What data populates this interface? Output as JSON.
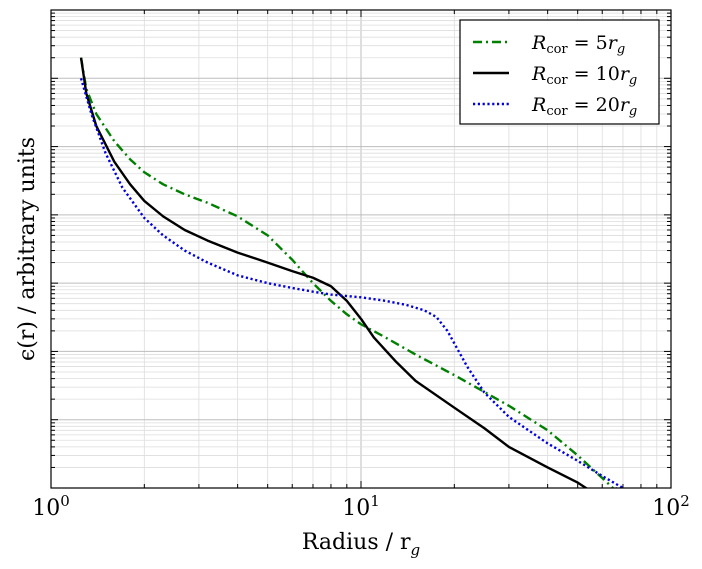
{
  "chart_data": {
    "type": "line",
    "title": "",
    "xlabel": "Radius / r",
    "xlabel_sub": "g",
    "ylabel": "ϵ(r) / arbitrary units",
    "xscale": "log",
    "yscale": "log",
    "xlim": [
      1,
      100
    ],
    "ylim": [
      0.0001,
      1000
    ],
    "grid": true,
    "legend_position": "top-right",
    "x_tick_labels": [
      {
        "value": 1,
        "base": "10",
        "exp": "0"
      },
      {
        "value": 10,
        "base": "10",
        "exp": "1"
      },
      {
        "value": 100,
        "base": "10",
        "exp": "2"
      }
    ],
    "series": [
      {
        "name": "R_cor = 5r_g",
        "legend": {
          "sym": "R",
          "sub": "cor",
          "rest": " = 5",
          "var": "r",
          "var_sub": "g"
        },
        "color": "#008000",
        "dash": "dashdot",
        "x": [
          1.25,
          1.3,
          1.4,
          1.6,
          1.8,
          2.0,
          2.3,
          2.7,
          3.2,
          4.0,
          5.0,
          6.0,
          7.0,
          8.0,
          9.0,
          10.0,
          12.0,
          15.0,
          20.0,
          30.0,
          40.0,
          50.0,
          60.0,
          65.0
        ],
        "y": [
          200,
          70,
          30,
          12,
          6.5,
          4.2,
          2.8,
          2.0,
          1.5,
          0.95,
          0.5,
          0.22,
          0.1,
          0.055,
          0.035,
          0.025,
          0.016,
          0.009,
          0.0045,
          0.0016,
          0.0007,
          0.0003,
          0.00014,
          0.0001
        ]
      },
      {
        "name": "R_cor = 10r_g",
        "legend": {
          "sym": "R",
          "sub": "cor",
          "rest": " = 10",
          "var": "r",
          "var_sub": "g"
        },
        "color": "#000000",
        "dash": "solid",
        "x": [
          1.25,
          1.3,
          1.4,
          1.6,
          1.8,
          2.0,
          2.3,
          2.7,
          3.2,
          4.0,
          5.0,
          6.0,
          7.0,
          8.0,
          9.0,
          10.0,
          11.0,
          13.0,
          15.0,
          20.0,
          25.0,
          30.0,
          40.0,
          50.0,
          60.0,
          67.0
        ],
        "y": [
          200,
          60,
          20,
          6.0,
          2.8,
          1.6,
          0.95,
          0.6,
          0.42,
          0.28,
          0.2,
          0.15,
          0.12,
          0.09,
          0.055,
          0.03,
          0.016,
          0.007,
          0.0037,
          0.0015,
          0.00075,
          0.0004,
          0.0002,
          0.00012,
          7e-05,
          0.0001
        ]
      },
      {
        "name": "R_cor = 20r_g",
        "legend": {
          "sym": "R",
          "sub": "cor",
          "rest": " = 20",
          "var": "r",
          "var_sub": "g"
        },
        "color": "#0000dd",
        "dash": "dotted",
        "x": [
          1.25,
          1.35,
          1.5,
          1.7,
          2.0,
          2.3,
          2.7,
          3.2,
          4.0,
          5.0,
          6.0,
          7.0,
          8.0,
          10.0,
          12.0,
          14.0,
          16.0,
          17.5,
          19.0,
          22.0,
          25.0,
          30.0,
          40.0,
          50.0,
          60.0,
          70.0
        ],
        "y": [
          100,
          30,
          8.0,
          2.5,
          0.9,
          0.5,
          0.3,
          0.2,
          0.13,
          0.1,
          0.085,
          0.075,
          0.068,
          0.062,
          0.055,
          0.048,
          0.04,
          0.032,
          0.02,
          0.006,
          0.0025,
          0.0011,
          0.00045,
          0.00025,
          0.00015,
          0.0001
        ]
      }
    ]
  }
}
